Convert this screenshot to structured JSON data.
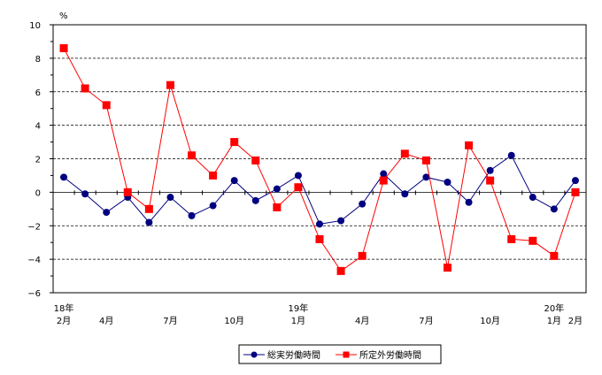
{
  "chart_data": {
    "type": "line",
    "unit": "%",
    "ylim": [
      -6,
      10
    ],
    "y_ticks": [
      -6,
      -4,
      -2,
      0,
      2,
      4,
      6,
      8,
      10
    ],
    "y_tick_labels": [
      "−6",
      "−4",
      "−2",
      "0",
      "2",
      "4",
      "6",
      "8",
      "10"
    ],
    "grid": "dashed horizontal",
    "legend_position": "bottom-right",
    "categories": [
      "18年2月",
      "3月",
      "4月",
      "5月",
      "6月",
      "7月",
      "8月",
      "9月",
      "10月",
      "11月",
      "12月",
      "19年1月",
      "2月",
      "3月",
      "4月",
      "5月",
      "6月",
      "7月",
      "8月",
      "9月",
      "10月",
      "11月",
      "12月",
      "20年1月",
      "2月"
    ],
    "x_tick_labels": [
      {
        "index": 0,
        "top": "18年",
        "bottom": "2月"
      },
      {
        "index": 2,
        "top": "",
        "bottom": "4月"
      },
      {
        "index": 5,
        "top": "",
        "bottom": "7月"
      },
      {
        "index": 8,
        "top": "",
        "bottom": "10月"
      },
      {
        "index": 11,
        "top": "19年",
        "bottom": "1月"
      },
      {
        "index": 14,
        "top": "",
        "bottom": "4月"
      },
      {
        "index": 17,
        "top": "",
        "bottom": "7月"
      },
      {
        "index": 20,
        "top": "",
        "bottom": "10月"
      },
      {
        "index": 23,
        "top": "20年",
        "bottom": "1月"
      },
      {
        "index": 24,
        "top": "",
        "bottom": "2月"
      }
    ],
    "series": [
      {
        "name": "総実労働時間",
        "color": "#000080",
        "marker": "circle",
        "values": [
          0.9,
          -0.1,
          -1.2,
          -0.3,
          -1.8,
          -0.3,
          -1.4,
          -0.8,
          0.7,
          -0.5,
          0.2,
          1.0,
          -1.9,
          -1.7,
          -0.7,
          1.1,
          -0.1,
          0.9,
          0.6,
          -0.6,
          1.3,
          2.2,
          -0.3,
          -1.0,
          0.7
        ]
      },
      {
        "name": "所定外労働時間",
        "color": "#ff0000",
        "marker": "square",
        "values": [
          8.6,
          6.2,
          5.2,
          0.0,
          -1.0,
          6.4,
          2.2,
          1.0,
          3.0,
          1.9,
          -0.9,
          0.3,
          -2.8,
          -4.7,
          -3.8,
          0.7,
          2.3,
          1.9,
          -4.5,
          2.8,
          0.7,
          -2.8,
          -2.9,
          -3.8,
          0.0
        ]
      }
    ]
  }
}
